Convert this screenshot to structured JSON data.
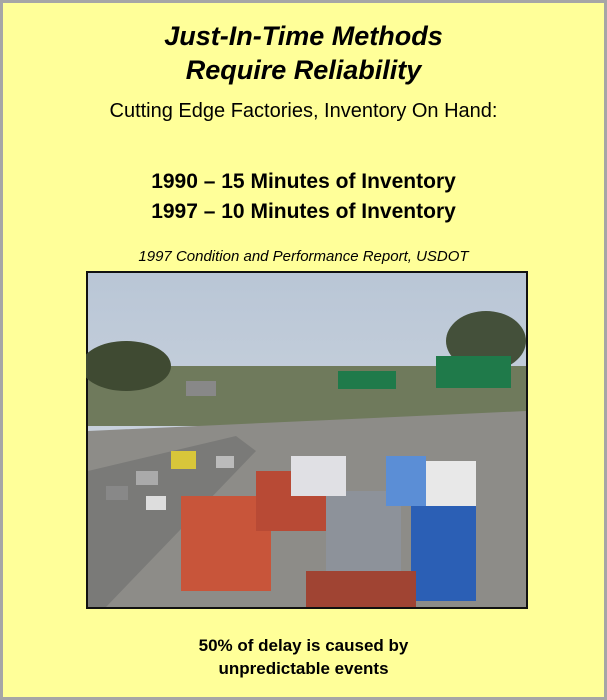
{
  "title": [
    "Just-In-Time Methods",
    "Require Reliability"
  ],
  "subtitle": "Cutting Edge Factories, Inventory On Hand:",
  "facts": [
    "1990 – 15 Minutes of Inventory",
    "1997 – 10 Minutes of Inventory"
  ],
  "source": "1997 Condition and Performance Report, USDOT",
  "caption": [
    "50% of delay is caused by",
    "unpredictable events"
  ]
}
